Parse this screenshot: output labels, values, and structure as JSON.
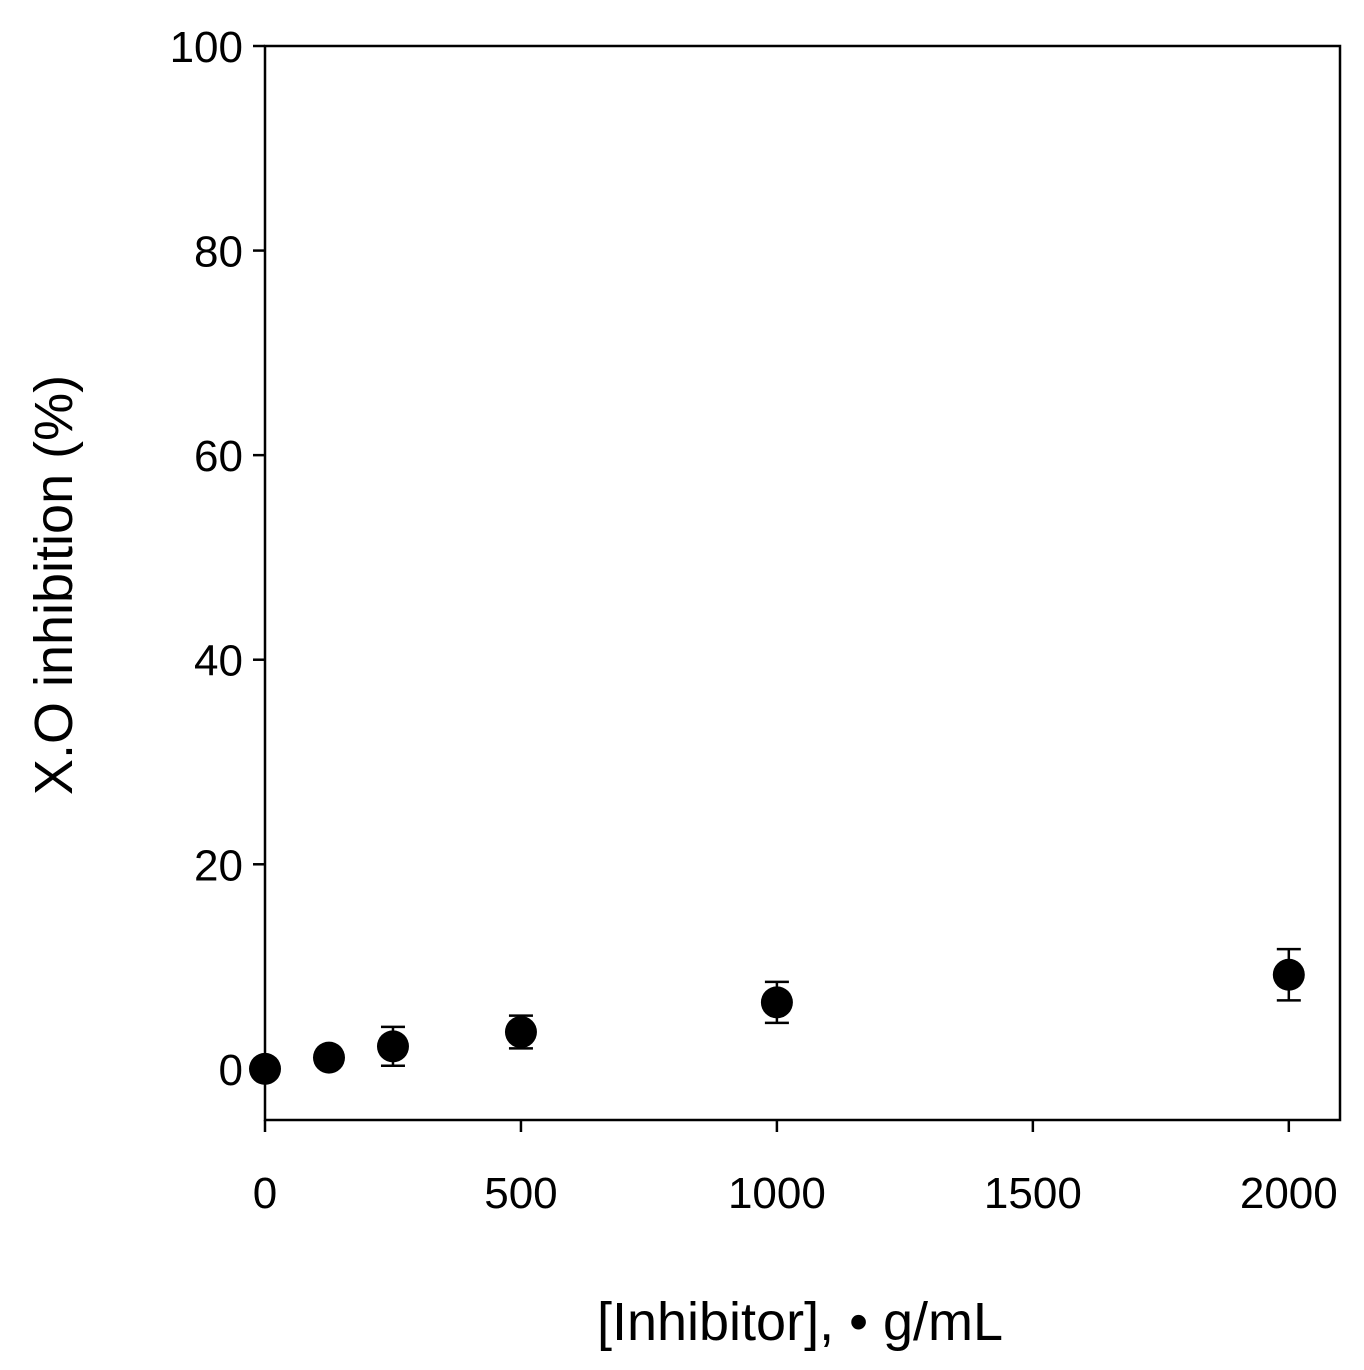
{
  "chart_data": {
    "type": "scatter",
    "title": "",
    "xlabel": "[Inhibitor], • g/mL",
    "ylabel": "X.O inhibition (%)",
    "xlim": [
      0,
      2100
    ],
    "ylim": [
      -5,
      100
    ],
    "x_ticks": [
      0,
      500,
      1000,
      1500,
      2000
    ],
    "y_ticks": [
      0,
      20,
      40,
      60,
      80,
      100
    ],
    "x_tick_labels": [
      "0",
      "500",
      "1000",
      "1500",
      "2000"
    ],
    "y_tick_labels": [
      "0",
      "20",
      "40",
      "60",
      "80",
      "100"
    ],
    "grid": false,
    "legend": "none",
    "marker_color": "#000000",
    "series": [
      {
        "points": [
          {
            "x": 0,
            "y": 0.0,
            "err": 0
          },
          {
            "x": 125,
            "y": 1.1,
            "err": 0
          },
          {
            "x": 250,
            "y": 2.2,
            "err": 1.9
          },
          {
            "x": 500,
            "y": 3.6,
            "err": 1.6
          },
          {
            "x": 1000,
            "y": 6.5,
            "err": 2.0
          },
          {
            "x": 2000,
            "y": 9.2,
            "err": 2.5
          }
        ]
      }
    ]
  }
}
